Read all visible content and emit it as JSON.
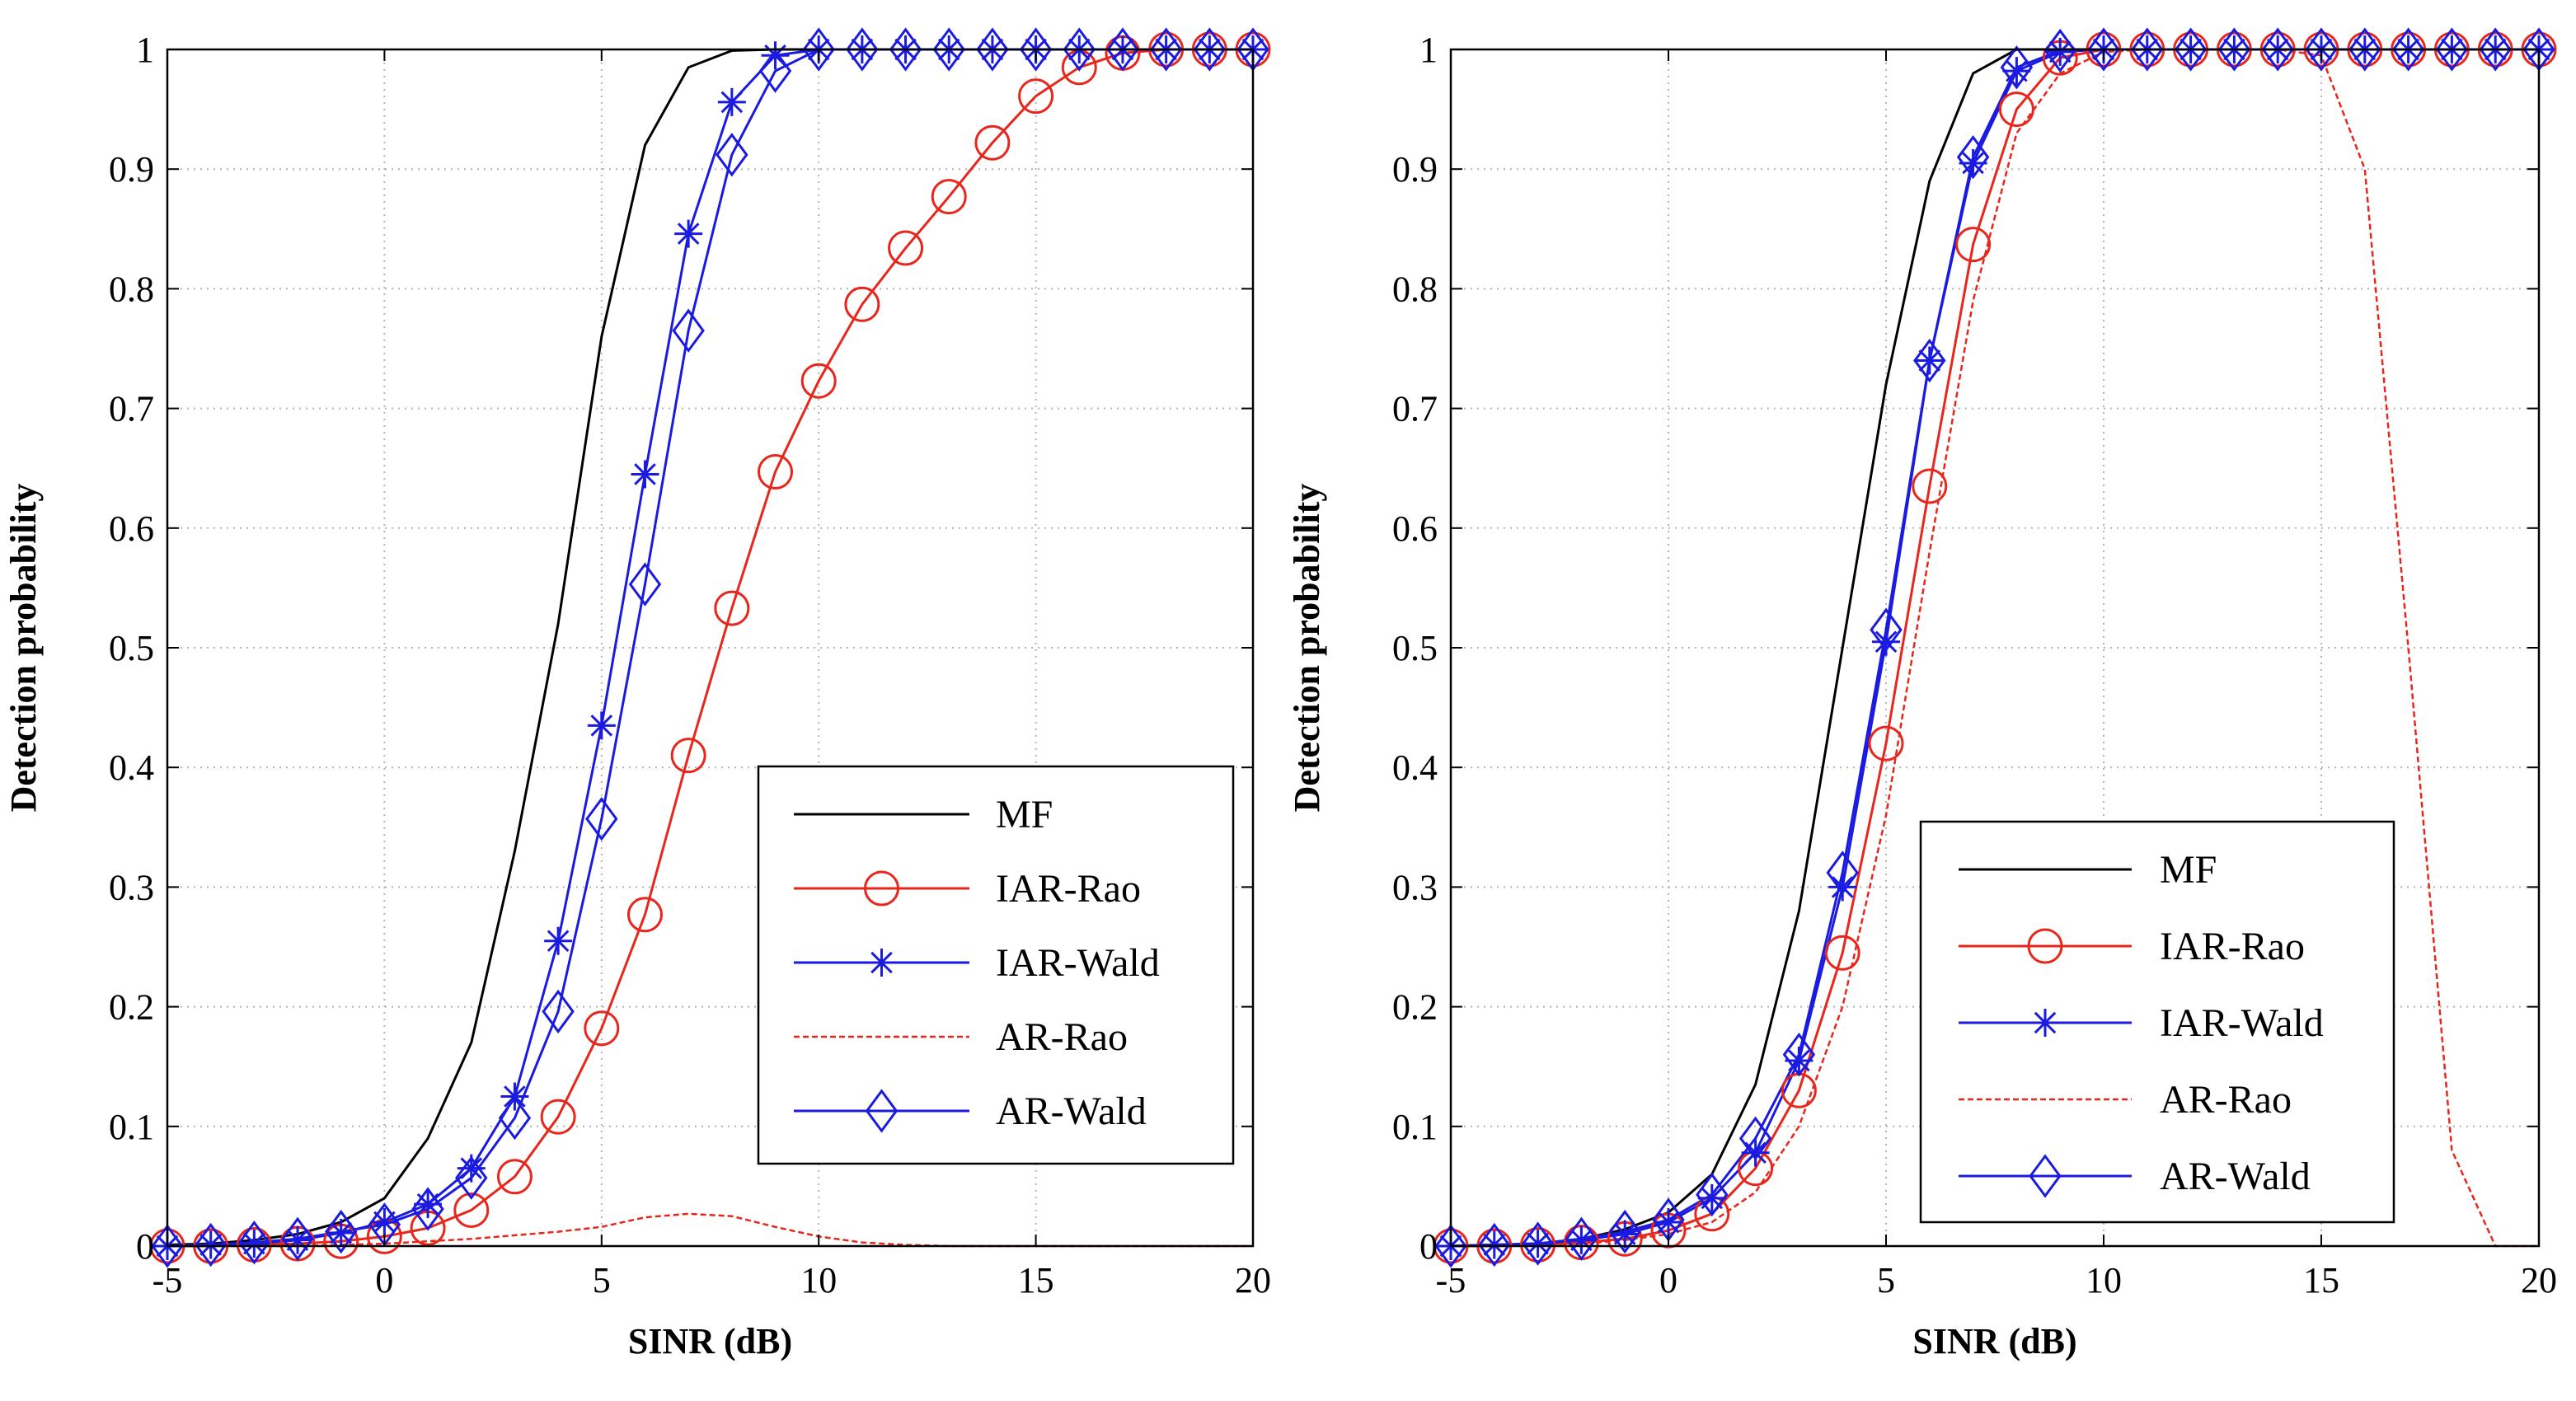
{
  "chart_data": [
    {
      "type": "line",
      "panel": "left",
      "xlabel": "SINR (dB)",
      "ylabel": "Detection probability",
      "xlim": [
        -5,
        20
      ],
      "ylim": [
        0,
        1
      ],
      "xticks": [
        -5,
        0,
        5,
        10,
        15,
        20
      ],
      "xtick_labels": [
        "-5",
        "0",
        "5",
        "10",
        "15",
        "20"
      ],
      "yticks": [
        0,
        0.1,
        0.2,
        0.3,
        0.4,
        0.5,
        0.6,
        0.7,
        0.8,
        0.9,
        1
      ],
      "ytick_labels": [
        "0",
        "0.1",
        "0.2",
        "0.3",
        "0.4",
        "0.5",
        "0.6",
        "0.7",
        "0.8",
        "0.9",
        "1"
      ],
      "grid": true,
      "legend": {
        "position": "lower-right",
        "entries": [
          "MF",
          "IAR-Rao",
          "IAR-Wald",
          "AR-Rao",
          "AR-Wald"
        ]
      },
      "x": [
        -5,
        -4,
        -3,
        -2,
        -1,
        0,
        1,
        2,
        3,
        4,
        5,
        6,
        7,
        8,
        9,
        10,
        11,
        12,
        13,
        14,
        15,
        16,
        17,
        18,
        19,
        20
      ],
      "series": [
        {
          "name": "MF",
          "color": "#000000",
          "marker": "none",
          "dash": "solid",
          "values": [
            0.001,
            0.002,
            0.005,
            0.01,
            0.02,
            0.04,
            0.09,
            0.17,
            0.33,
            0.52,
            0.76,
            0.92,
            0.985,
            0.999,
            1,
            1,
            1,
            1,
            1,
            1,
            1,
            1,
            1,
            1,
            1,
            1
          ]
        },
        {
          "name": "IAR-Rao",
          "color": "#e8261c",
          "marker": "circle",
          "dash": "solid",
          "values": [
            0.0,
            0.0,
            0.001,
            0.002,
            0.004,
            0.008,
            0.015,
            0.03,
            0.058,
            0.108,
            0.182,
            0.277,
            0.41,
            0.533,
            0.647,
            0.723,
            0.787,
            0.834,
            0.877,
            0.922,
            0.961,
            0.985,
            0.997,
            1,
            1,
            1
          ]
        },
        {
          "name": "IAR-Wald",
          "color": "#1a1ae0",
          "marker": "star",
          "dash": "solid",
          "values": [
            0.0,
            0.001,
            0.002,
            0.005,
            0.011,
            0.02,
            0.035,
            0.065,
            0.125,
            0.255,
            0.435,
            0.645,
            0.846,
            0.956,
            0.995,
            1,
            1,
            1,
            1,
            1,
            1,
            1,
            1,
            1,
            1,
            1
          ]
        },
        {
          "name": "AR-Rao",
          "color": "#e8261c",
          "marker": "none",
          "dash": "dashed",
          "values": [
            0.0,
            0.0,
            0.0,
            0.0,
            0.001,
            0.002,
            0.004,
            0.006,
            0.009,
            0.012,
            0.016,
            0.024,
            0.027,
            0.025,
            0.016,
            0.008,
            0.003,
            0.001,
            0.0,
            0.0,
            0.0,
            0.0,
            0.0,
            0.0,
            0.0,
            0.0
          ]
        },
        {
          "name": "AR-Wald",
          "color": "#1a1ae0",
          "marker": "diamond",
          "dash": "solid",
          "values": [
            0.0,
            0.001,
            0.003,
            0.006,
            0.012,
            0.018,
            0.031,
            0.057,
            0.107,
            0.196,
            0.357,
            0.553,
            0.765,
            0.912,
            0.982,
            1,
            1,
            1,
            1,
            1,
            1,
            1,
            1,
            1,
            1,
            1
          ]
        }
      ]
    },
    {
      "type": "line",
      "panel": "right",
      "xlabel": "SINR (dB)",
      "ylabel": "Detection probability",
      "xlim": [
        -5,
        20
      ],
      "ylim": [
        0,
        1
      ],
      "xticks": [
        -5,
        0,
        5,
        10,
        15,
        20
      ],
      "xtick_labels": [
        "-5",
        "0",
        "5",
        "10",
        "15",
        "20"
      ],
      "yticks": [
        0,
        0.1,
        0.2,
        0.3,
        0.4,
        0.5,
        0.6,
        0.7,
        0.8,
        0.9,
        1
      ],
      "ytick_labels": [
        "0",
        "0.1",
        "0.2",
        "0.3",
        "0.4",
        "0.5",
        "0.6",
        "0.7",
        "0.8",
        "0.9",
        "1"
      ],
      "grid": true,
      "legend": {
        "position": "lower-center-right",
        "entries": [
          "MF",
          "IAR-Rao",
          "IAR-Wald",
          "AR-Rao",
          "AR-Wald"
        ]
      },
      "x": [
        -5,
        -4,
        -3,
        -2,
        -1,
        0,
        1,
        2,
        3,
        4,
        5,
        6,
        7,
        8,
        9,
        10,
        11,
        12,
        13,
        14,
        15,
        16,
        17,
        18,
        19,
        20
      ],
      "series": [
        {
          "name": "MF",
          "color": "#000000",
          "marker": "none",
          "dash": "solid",
          "values": [
            0.0,
            0.001,
            0.002,
            0.006,
            0.014,
            0.028,
            0.06,
            0.135,
            0.28,
            0.5,
            0.72,
            0.89,
            0.98,
            1,
            1,
            1,
            1,
            1,
            1,
            1,
            1,
            1,
            1,
            1,
            1,
            1
          ]
        },
        {
          "name": "IAR-Rao",
          "color": "#e8261c",
          "marker": "circle",
          "dash": "solid",
          "values": [
            0.0,
            0.0,
            0.001,
            0.003,
            0.006,
            0.013,
            0.027,
            0.065,
            0.13,
            0.245,
            0.42,
            0.635,
            0.837,
            0.95,
            0.993,
            1,
            1,
            1,
            1,
            1,
            1,
            1,
            1,
            1,
            1,
            1
          ]
        },
        {
          "name": "IAR-Wald",
          "color": "#1a1ae0",
          "marker": "star",
          "dash": "solid",
          "values": [
            0.0,
            0.001,
            0.002,
            0.005,
            0.01,
            0.02,
            0.04,
            0.078,
            0.155,
            0.3,
            0.505,
            0.74,
            0.905,
            0.982,
            0.998,
            1,
            1,
            1,
            1,
            1,
            1,
            1,
            1,
            1,
            1,
            1
          ]
        },
        {
          "name": "AR-Rao",
          "color": "#e8261c",
          "marker": "none",
          "dash": "dashed",
          "values": [
            0.0,
            0.0,
            0.001,
            0.002,
            0.005,
            0.01,
            0.02,
            0.045,
            0.1,
            0.2,
            0.36,
            0.58,
            0.79,
            0.93,
            0.98,
            0.998,
            1,
            1,
            1,
            1,
            0.995,
            0.9,
            0.5,
            0.08,
            0.0,
            0.0
          ]
        },
        {
          "name": "AR-Wald",
          "color": "#1a1ae0",
          "marker": "diamond",
          "dash": "solid",
          "values": [
            0.0,
            0.001,
            0.002,
            0.006,
            0.012,
            0.022,
            0.043,
            0.09,
            0.16,
            0.312,
            0.515,
            0.74,
            0.91,
            0.985,
            0.999,
            1,
            1,
            1,
            1,
            1,
            1,
            1,
            1,
            1,
            1,
            1
          ]
        }
      ]
    }
  ]
}
